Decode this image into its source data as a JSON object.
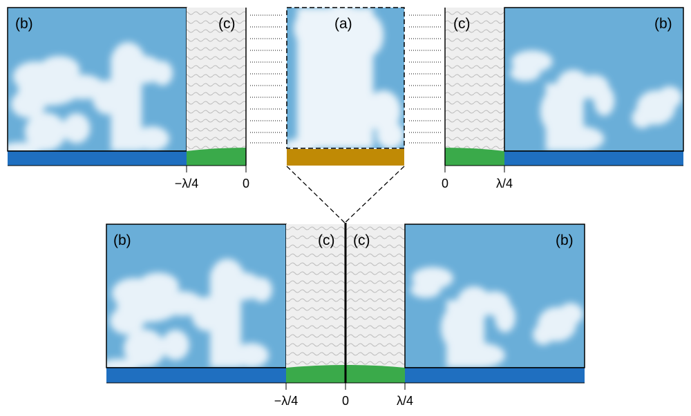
{
  "panel_labels": {
    "a": "(a)",
    "b": "(b)",
    "c": "(c)"
  },
  "axis_ticks": {
    "neg_quarter": "−λ/4",
    "zero": "0",
    "pos_quarter": "λ/4"
  },
  "colors": {
    "sky": "#6aaed8",
    "cloud": "#f2f7fb",
    "ground_blue": "#1f6fc0",
    "ground_green": "#3aaa4a",
    "ground_brown": "#c08a05",
    "buffer_bg": "#efefef",
    "wave": "#bdbdbd"
  }
}
